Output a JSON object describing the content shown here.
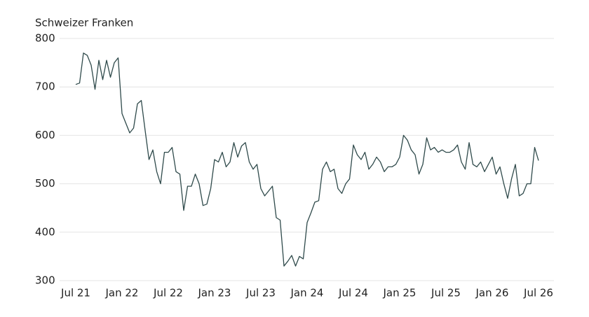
{
  "chart_data": {
    "type": "line",
    "y_label": "Schweizer Franken",
    "categories": [
      "Jul 21",
      null,
      null,
      null,
      null,
      null,
      null,
      null,
      null,
      null,
      null,
      null,
      "Jan 22",
      null,
      null,
      null,
      null,
      null,
      null,
      null,
      null,
      null,
      null,
      null,
      "Jul 22",
      null,
      null,
      null,
      null,
      null,
      null,
      null,
      null,
      null,
      null,
      null,
      "Jan 23",
      null,
      null,
      null,
      null,
      null,
      null,
      null,
      null,
      null,
      null,
      null,
      "Jul 23",
      null,
      null,
      null,
      null,
      null,
      null,
      null,
      null,
      null,
      null,
      null,
      "Jan 24",
      null,
      null,
      null,
      null,
      null,
      null,
      null,
      null,
      null,
      null,
      null,
      "Jul 24",
      null,
      null,
      null,
      null,
      null,
      null,
      null,
      null,
      null,
      null,
      null,
      "Jan 25",
      null,
      null,
      null,
      null,
      null,
      null,
      null,
      null,
      null,
      null,
      null,
      "Jul 25",
      null,
      null,
      null,
      null,
      null,
      null,
      null,
      null,
      null,
      null,
      null,
      "Jan 26",
      null,
      null,
      null,
      null,
      null,
      null,
      null,
      null,
      null,
      null,
      null,
      "Jul 26"
    ],
    "series": [
      {
        "color": "#2f4a4b",
        "values": [
          705,
          708,
          770,
          765,
          745,
          695,
          755,
          715,
          755,
          720,
          750,
          760,
          645,
          625,
          605,
          615,
          665,
          672,
          610,
          550,
          570,
          525,
          500,
          565,
          565,
          575,
          525,
          520,
          445,
          495,
          495,
          520,
          500,
          455,
          458,
          490,
          550,
          545,
          565,
          535,
          545,
          585,
          555,
          578,
          585,
          545,
          530,
          540,
          490,
          475,
          485,
          495,
          430,
          425,
          330,
          340,
          352,
          330,
          350,
          345,
          420,
          440,
          462,
          465,
          530,
          545,
          525,
          530,
          490,
          480,
          500,
          510,
          580,
          560,
          550,
          565,
          530,
          540,
          555,
          545,
          525,
          535,
          535,
          540,
          555,
          600,
          590,
          570,
          560,
          520,
          540,
          595,
          570,
          575,
          565,
          570,
          565,
          565,
          570,
          580,
          545,
          530,
          585,
          540,
          535,
          545,
          525,
          540,
          555,
          520,
          535,
          500,
          470,
          510,
          540,
          475,
          480,
          500,
          500,
          575,
          548
        ]
      }
    ],
    "ylim": [
      300,
      800
    ],
    "yticks": [
      300,
      400,
      500,
      600,
      700,
      800
    ],
    "grid": true
  }
}
